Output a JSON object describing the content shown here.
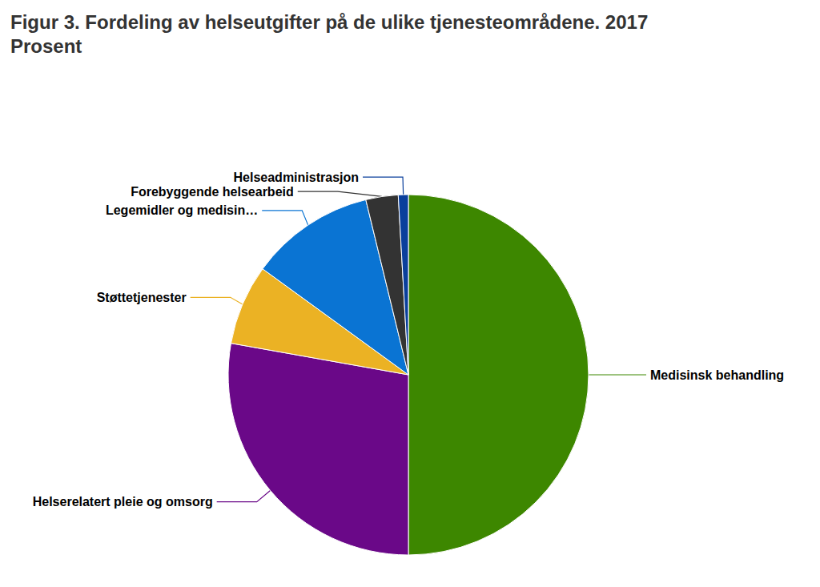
{
  "chart_data": {
    "type": "pie",
    "title": "Figur 3. Fordeling av helseutgifter på de ulike tjenesteområdene. 2017",
    "subtitle": "Prosent",
    "categories": [
      "Medisinsk behandling",
      "Helserelatert pleie og omsorg",
      "Støttetjenester",
      "Legemidler og medisin…",
      "Forebyggende helsearbeid",
      "Helseadministrasjon"
    ],
    "values": [
      50,
      27.8,
      7.2,
      11.2,
      2.9,
      0.9
    ],
    "colors": [
      "#3d8700",
      "#6a0888",
      "#ebb224",
      "#0a74d3",
      "#333333",
      "#0a3f9c"
    ]
  }
}
